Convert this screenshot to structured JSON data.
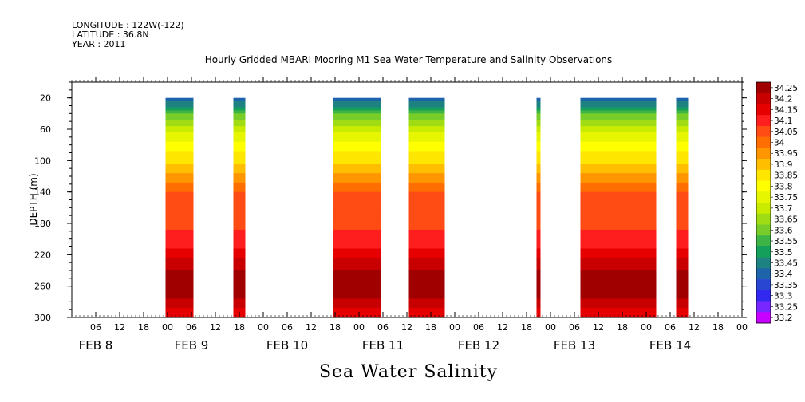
{
  "meta": {
    "longitude": "LONGITUDE : 122W(-122)",
    "latitude": "LATITUDE : 36.8N",
    "year": "YEAR : 2011"
  },
  "chart_data": {
    "type": "heatmap",
    "title": "Hourly Gridded MBARI Mooring M1 Sea Water Temperature and Salinity Observations",
    "bottom_title": "Sea Water Salinity",
    "ylabel": "DEPTH (m)",
    "xlabel": "",
    "x_range_hours": [
      -18,
      150
    ],
    "y_range": [
      0,
      300
    ],
    "y_inverted": true,
    "y_ticks": [
      20,
      60,
      100,
      140,
      180,
      220,
      260,
      300
    ],
    "x_hour_ticks": [
      {
        "h": -12,
        "label": "06"
      },
      {
        "h": -6,
        "label": "12"
      },
      {
        "h": 0,
        "label": "18"
      },
      {
        "h": 6,
        "label": "00"
      },
      {
        "h": 12,
        "label": "06"
      },
      {
        "h": 18,
        "label": "12"
      },
      {
        "h": 24,
        "label": "18"
      },
      {
        "h": 30,
        "label": "00"
      },
      {
        "h": 36,
        "label": "06"
      },
      {
        "h": 42,
        "label": "12"
      },
      {
        "h": 48,
        "label": "18"
      },
      {
        "h": 54,
        "label": "00"
      },
      {
        "h": 60,
        "label": "06"
      },
      {
        "h": 66,
        "label": "12"
      },
      {
        "h": 72,
        "label": "18"
      },
      {
        "h": 78,
        "label": "00"
      },
      {
        "h": 84,
        "label": "06"
      },
      {
        "h": 90,
        "label": "12"
      },
      {
        "h": 96,
        "label": "18"
      },
      {
        "h": 102,
        "label": "00"
      },
      {
        "h": 108,
        "label": "06"
      },
      {
        "h": 114,
        "label": "12"
      },
      {
        "h": 120,
        "label": "18"
      },
      {
        "h": 126,
        "label": "00"
      },
      {
        "h": 132,
        "label": "06"
      },
      {
        "h": 138,
        "label": "12"
      },
      {
        "h": 144,
        "label": "18"
      },
      {
        "h": 150,
        "label": "00"
      }
    ],
    "day_labels": [
      {
        "h": -12,
        "label": "FEB  8"
      },
      {
        "h": 12,
        "label": "FEB  9"
      },
      {
        "h": 36,
        "label": "FEB 10"
      },
      {
        "h": 60,
        "label": "FEB 11"
      },
      {
        "h": 84,
        "label": "FEB 12"
      },
      {
        "h": 108,
        "label": "FEB 13"
      },
      {
        "h": 132,
        "label": "FEB 14"
      }
    ],
    "data_depth_range": [
      20,
      300
    ],
    "columns": [
      {
        "start": 5.5,
        "end": 12.5
      },
      {
        "start": 22.5,
        "end": 25.5
      },
      {
        "start": 47.5,
        "end": 59.5
      },
      {
        "start": 66.5,
        "end": 75.5
      },
      {
        "start": 98.5,
        "end": 99.5
      },
      {
        "start": 109.5,
        "end": 128.5
      },
      {
        "start": 133.5,
        "end": 136.5
      }
    ],
    "profile": [
      {
        "depth": 20,
        "value": 33.35
      },
      {
        "depth": 30,
        "value": 33.45
      },
      {
        "depth": 40,
        "value": 33.55
      },
      {
        "depth": 55,
        "value": 33.65
      },
      {
        "depth": 70,
        "value": 33.72
      },
      {
        "depth": 85,
        "value": 33.78
      },
      {
        "depth": 100,
        "value": 33.84
      },
      {
        "depth": 115,
        "value": 33.9
      },
      {
        "depth": 130,
        "value": 33.96
      },
      {
        "depth": 145,
        "value": 34.02
      },
      {
        "depth": 200,
        "value": 34.06
      },
      {
        "depth": 215,
        "value": 34.12
      },
      {
        "depth": 230,
        "value": 34.17
      },
      {
        "depth": 245,
        "value": 34.21
      },
      {
        "depth": 260,
        "value": 34.24
      },
      {
        "depth": 275,
        "value": 34.21
      },
      {
        "depth": 285,
        "value": 34.16
      },
      {
        "depth": 300,
        "value": 34.12
      }
    ],
    "legend": {
      "placement": "right",
      "levels": [
        "34.25",
        "34.2",
        "34.15",
        "34.1",
        "34.05",
        "34",
        "33.95",
        "33.9",
        "33.85",
        "33.8",
        "33.75",
        "33.7",
        "33.65",
        "33.6",
        "33.55",
        "33.5",
        "33.45",
        "33.4",
        "33.35",
        "33.3",
        "33.25",
        "33.2"
      ],
      "colors": [
        "#a00000",
        "#c80000",
        "#e60000",
        "#ff1e1e",
        "#ff4b14",
        "#ff6e00",
        "#ff9600",
        "#ffbe00",
        "#ffe600",
        "#ffff00",
        "#e6f500",
        "#c8eb00",
        "#a0dc14",
        "#78cd28",
        "#3cb446",
        "#14a05a",
        "#1e8282",
        "#1e64aa",
        "#2846d2",
        "#3228f0",
        "#7828ff",
        "#c800ff"
      ]
    }
  }
}
